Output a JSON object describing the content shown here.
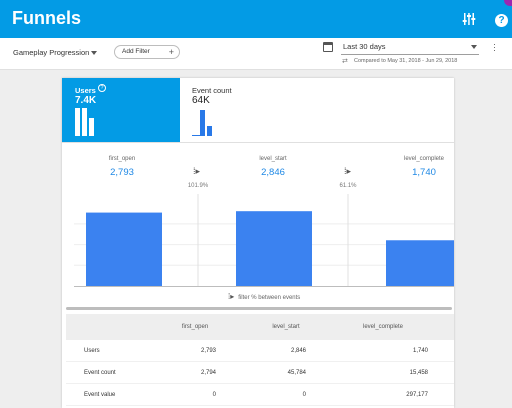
{
  "app": {
    "title": "Funnels"
  },
  "filterbar": {
    "funnel_name": "Gameplay Progression",
    "add_filter_label": "Add Filter",
    "date_range": "Last 30 days",
    "compare_text": "Compared to May 31, 2018 - Jun 29, 2018"
  },
  "tabs": {
    "users": {
      "label": "Users",
      "value": "7.4K"
    },
    "events": {
      "label": "Event count",
      "value": "64K"
    }
  },
  "steps": [
    {
      "name": "first_open",
      "value": "2,793"
    },
    {
      "name": "level_start",
      "value": "2,846"
    },
    {
      "name": "level_complete",
      "value": "1,740"
    }
  ],
  "step_percentages": [
    "101.9%",
    "61.1%"
  ],
  "filter_note": "filter % between events",
  "chart_data": {
    "type": "bar",
    "categories": [
      "first_open",
      "level_start",
      "level_complete"
    ],
    "values": [
      2793,
      2846,
      1740
    ],
    "ylim": [
      0,
      3500
    ],
    "grid": true
  },
  "table": {
    "columns": [
      "first_open",
      "level_start",
      "level_complete"
    ],
    "rows": [
      {
        "label": "Users",
        "values": [
          "2,793",
          "2,846",
          "1,740"
        ]
      },
      {
        "label": "Event count",
        "values": [
          "2,794",
          "45,784",
          "15,458"
        ]
      },
      {
        "label": "Event value",
        "values": [
          "0",
          "0",
          "297,177"
        ]
      }
    ]
  },
  "colors": {
    "appbar": "#039be5",
    "bar": "#3b82f0",
    "step_value": "#1e88e5"
  }
}
